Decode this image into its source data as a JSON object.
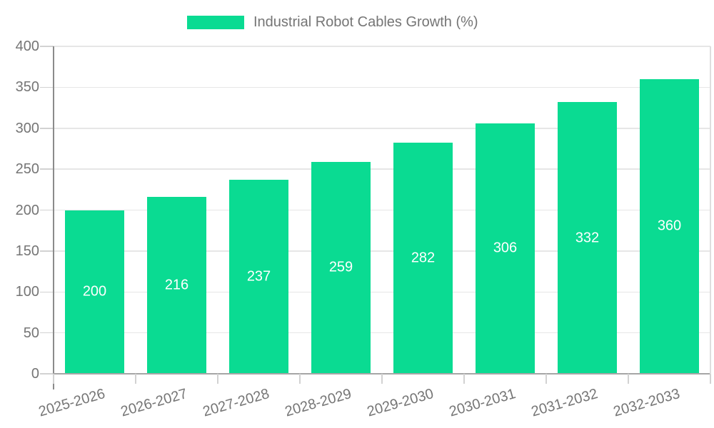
{
  "legend": {
    "label": "Industrial Robot Cables Growth (%)"
  },
  "chart_data": {
    "type": "bar",
    "title": "",
    "series_name": "Industrial Robot Cables Growth (%)",
    "categories": [
      "2025-2026",
      "2026-2027",
      "2027-2028",
      "2028-2029",
      "2029-2030",
      "2030-2031",
      "2031-2032",
      "2032-2033"
    ],
    "values": [
      200,
      216,
      237,
      259,
      282,
      306,
      332,
      360
    ],
    "xlabel": "",
    "ylabel": "",
    "ylim": [
      0,
      400
    ],
    "yticks": [
      0,
      50,
      100,
      150,
      200,
      250,
      300,
      350,
      400
    ],
    "grid": true,
    "legend_position": "top-center",
    "bar_value_labels_visible": true,
    "x_tick_rotation_deg": -16,
    "colors": {
      "bar": "#0adb92",
      "value_label": "#ffffff",
      "axis_text": "#757575",
      "gridline": "#e6e6e6",
      "tick": "#d2d2d2",
      "axis_line_left": "#8b8b8b",
      "axis_line_bottom": "#a6a6a6",
      "right_border": "#dedede",
      "background": "#ffffff"
    }
  }
}
